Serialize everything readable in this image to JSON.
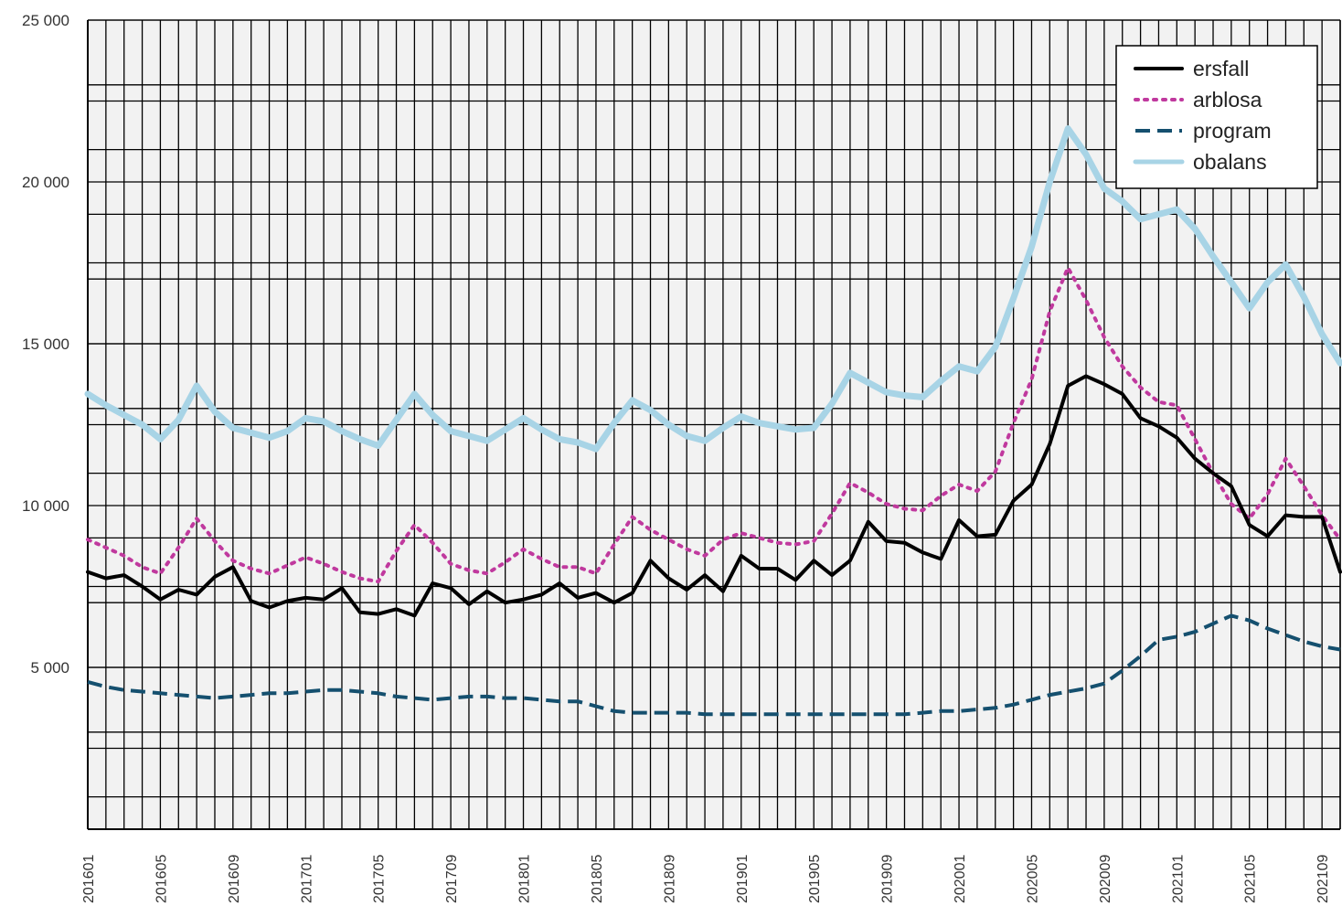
{
  "chart_data": {
    "type": "line",
    "x_start": "201601",
    "x_end": "202112",
    "x_tick_labels": [
      "201601",
      "201605",
      "201609",
      "201701",
      "201705",
      "201709",
      "201801",
      "201805",
      "201809",
      "201901",
      "201905",
      "201909",
      "202001",
      "202005",
      "202009",
      "202101",
      "202105",
      "202109"
    ],
    "y_tick_labels": [
      "5 000",
      "10 000",
      "15 000",
      "20 000",
      "25 000"
    ],
    "y_tick_values": [
      5000,
      10000,
      15000,
      20000,
      25000
    ],
    "ylim": [
      0,
      25000
    ],
    "grid": true,
    "legend_position": "top-right",
    "series": [
      {
        "name": "ersfall",
        "color": "#000000",
        "style": "solid",
        "values": [
          7950,
          7750,
          7850,
          7500,
          7100,
          7400,
          7250,
          7800,
          8100,
          7050,
          6850,
          7050,
          7150,
          7100,
          7450,
          6700,
          6650,
          6800,
          6600,
          7600,
          7450,
          6950,
          7350,
          7000,
          7100,
          7250,
          7600,
          7150,
          7300,
          7000,
          7300,
          8300,
          7750,
          7400,
          7850,
          7350,
          8450,
          8050,
          8050,
          7700,
          8300,
          7850,
          8300,
          9500,
          8900,
          8850,
          8550,
          8350,
          9550,
          9050,
          9100,
          10150,
          10650,
          11900,
          13700,
          14000,
          13750,
          13450,
          12700,
          12450,
          12100,
          11450,
          11000,
          10600,
          9400,
          9050,
          9700,
          9650,
          9650,
          7950
        ]
      },
      {
        "name": "arblosa",
        "color": "#c0399e",
        "style": "dotted",
        "values": [
          8950,
          8700,
          8450,
          8100,
          7900,
          8700,
          9600,
          8900,
          8300,
          8050,
          7900,
          8150,
          8400,
          8200,
          7950,
          7750,
          7650,
          8600,
          9400,
          8850,
          8200,
          8000,
          7900,
          8250,
          8650,
          8350,
          8100,
          8100,
          7900,
          8800,
          9650,
          9250,
          8950,
          8650,
          8450,
          8950,
          9150,
          9000,
          8850,
          8800,
          8900,
          9750,
          10700,
          10400,
          10050,
          9900,
          9850,
          10300,
          10650,
          10450,
          11050,
          12550,
          13900,
          16000,
          17350,
          16350,
          15200,
          14300,
          13650,
          13200,
          13100,
          12050,
          11000,
          10050,
          9600,
          10350,
          11450,
          10600,
          9700,
          8950
        ]
      },
      {
        "name": "program",
        "color": "#15506f",
        "style": "dashed",
        "values": [
          4550,
          4400,
          4300,
          4250,
          4200,
          4150,
          4100,
          4050,
          4100,
          4150,
          4200,
          4200,
          4250,
          4300,
          4300,
          4250,
          4200,
          4100,
          4050,
          4000,
          4050,
          4100,
          4100,
          4050,
          4050,
          4000,
          3950,
          3950,
          3800,
          3650,
          3600,
          3600,
          3600,
          3600,
          3550,
          3550,
          3550,
          3550,
          3550,
          3550,
          3550,
          3550,
          3550,
          3550,
          3550,
          3550,
          3600,
          3650,
          3650,
          3700,
          3750,
          3850,
          4000,
          4150,
          4250,
          4350,
          4500,
          4900,
          5350,
          5850,
          5950,
          6100,
          6350,
          6600,
          6450,
          6200,
          6000,
          5800,
          5650,
          5550
        ]
      },
      {
        "name": "obalans",
        "color": "#a8d4e6",
        "style": "solid",
        "values": [
          13450,
          13100,
          12800,
          12500,
          12050,
          12650,
          13700,
          12900,
          12400,
          12250,
          12100,
          12300,
          12700,
          12600,
          12300,
          12050,
          11850,
          12650,
          13450,
          12800,
          12300,
          12150,
          12000,
          12350,
          12700,
          12350,
          12050,
          11950,
          11750,
          12550,
          13250,
          12950,
          12500,
          12150,
          12000,
          12400,
          12750,
          12550,
          12450,
          12350,
          12400,
          13150,
          14100,
          13800,
          13500,
          13400,
          13350,
          13850,
          14300,
          14150,
          14900,
          16400,
          18000,
          20000,
          21650,
          20850,
          19800,
          19400,
          18850,
          19000,
          19150,
          18550,
          17700,
          16900,
          16100,
          16900,
          17450,
          16450,
          15300,
          14400
        ]
      }
    ]
  }
}
